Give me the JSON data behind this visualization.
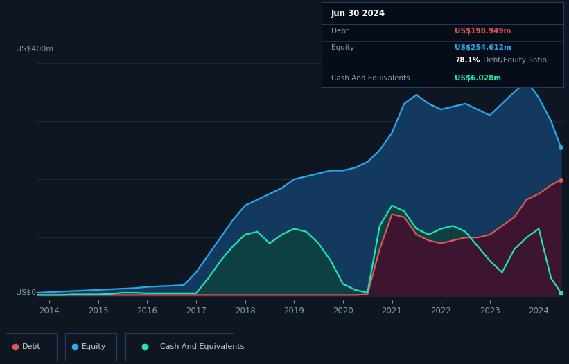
{
  "background_color": "#0e1621",
  "grid_color": "#1e2d3d",
  "debt_color": "#e05555",
  "equity_color": "#29aaee",
  "cash_color": "#1de8b5",
  "equity_fill_color": "#133a5e",
  "cash_fill_color": "#0d4040",
  "debt_fill_color": "#3d1530",
  "tooltip_bg": "#060d18",
  "tooltip_border": "#2a3a5a",
  "tooltip_title": "Jun 30 2024",
  "tooltip_debt_label": "Debt",
  "tooltip_debt_value": "US$198.949m",
  "tooltip_equity_label": "Equity",
  "tooltip_equity_value": "US$254.612m",
  "tooltip_ratio": "78.1%",
  "tooltip_ratio_label": " Debt/Equity Ratio",
  "tooltip_cash_label": "Cash And Equivalents",
  "tooltip_cash_value": "US$6.028m",
  "legend_items": [
    "Debt",
    "Equity",
    "Cash And Equivalents"
  ],
  "x_ticks": [
    2014,
    2015,
    2016,
    2017,
    2018,
    2019,
    2020,
    2021,
    2022,
    2023,
    2024
  ],
  "title_label": "US$400m",
  "zero_label": "US$0",
  "years": [
    2013.75,
    2014.0,
    2014.25,
    2014.5,
    2014.75,
    2015.0,
    2015.25,
    2015.5,
    2015.75,
    2016.0,
    2016.25,
    2016.5,
    2016.75,
    2017.0,
    2017.25,
    2017.5,
    2017.75,
    2018.0,
    2018.25,
    2018.5,
    2018.75,
    2019.0,
    2019.25,
    2019.5,
    2019.75,
    2020.0,
    2020.25,
    2020.5,
    2020.75,
    2021.0,
    2021.25,
    2021.5,
    2021.75,
    2022.0,
    2022.25,
    2022.5,
    2022.75,
    2023.0,
    2023.25,
    2023.5,
    2023.75,
    2024.0,
    2024.25,
    2024.45
  ],
  "equity": [
    5,
    6,
    7,
    8,
    9,
    10,
    11,
    12,
    13,
    15,
    16,
    17,
    18,
    40,
    70,
    100,
    130,
    155,
    165,
    175,
    185,
    200,
    205,
    210,
    215,
    215,
    220,
    230,
    250,
    280,
    330,
    345,
    330,
    320,
    325,
    330,
    320,
    310,
    330,
    350,
    370,
    340,
    300,
    255
  ],
  "debt": [
    1,
    1,
    1,
    1,
    1,
    1,
    1,
    1,
    1,
    1,
    1,
    1,
    1,
    1,
    1,
    1,
    1,
    1,
    1,
    1,
    1,
    1,
    1,
    1,
    1,
    1,
    1,
    2,
    80,
    140,
    135,
    105,
    95,
    90,
    95,
    100,
    100,
    105,
    120,
    135,
    165,
    175,
    190,
    199
  ],
  "cash": [
    1,
    1,
    1,
    2,
    2,
    2,
    3,
    5,
    5,
    4,
    4,
    4,
    4,
    4,
    30,
    60,
    85,
    105,
    110,
    90,
    105,
    115,
    110,
    90,
    60,
    20,
    10,
    5,
    120,
    155,
    145,
    115,
    105,
    115,
    120,
    110,
    85,
    60,
    40,
    80,
    100,
    115,
    30,
    5
  ]
}
